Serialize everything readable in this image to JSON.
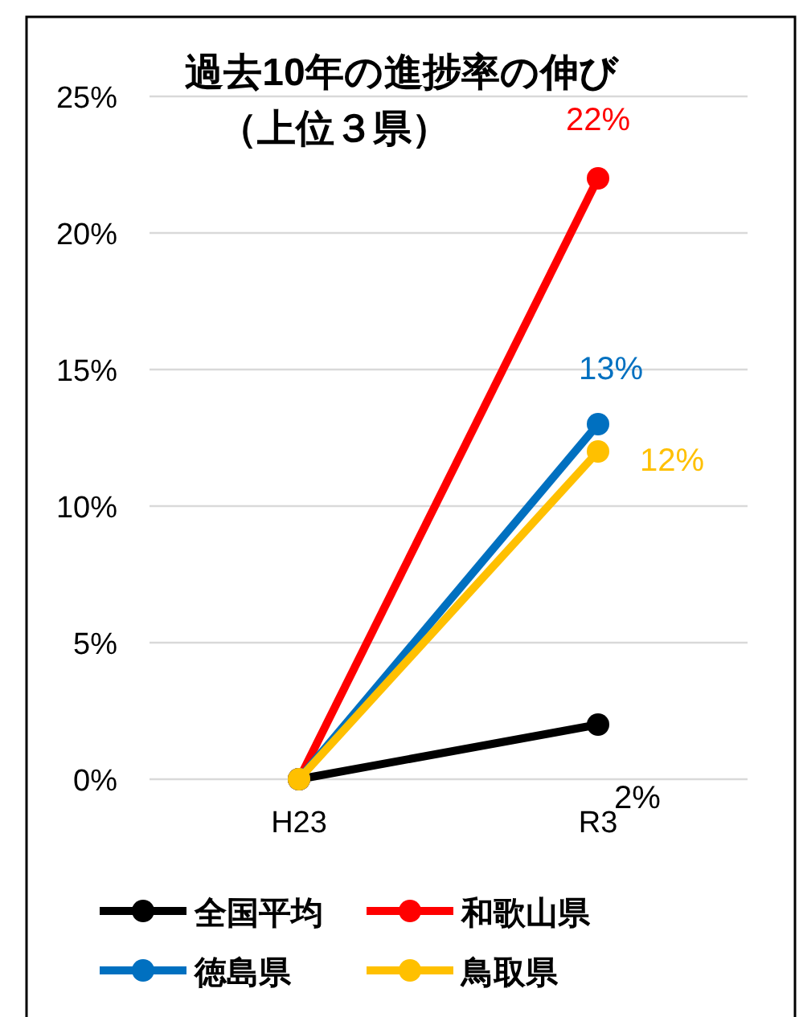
{
  "chart_data": {
    "type": "line",
    "title": "過去10年の進捗率の伸び",
    "subtitle": "（上位３県）",
    "categories": [
      "H23",
      "R3"
    ],
    "series": [
      {
        "name": "全国平均",
        "color": "#000000",
        "values": [
          0,
          2
        ],
        "value_labels": [
          null,
          "2%"
        ]
      },
      {
        "name": "和歌山県",
        "color": "#ff0000",
        "values": [
          0,
          22
        ],
        "value_labels": [
          null,
          "22%"
        ]
      },
      {
        "name": "徳島県",
        "color": "#0070c0",
        "values": [
          0,
          13
        ],
        "value_labels": [
          null,
          "13%"
        ]
      },
      {
        "name": "鳥取県",
        "color": "#ffc000",
        "values": [
          0,
          12
        ],
        "value_labels": [
          null,
          "12%"
        ]
      }
    ],
    "ylim": [
      0,
      25
    ],
    "yticks": [
      {
        "value": 0,
        "label": "0%"
      },
      {
        "value": 5,
        "label": "5%"
      },
      {
        "value": 10,
        "label": "10%"
      },
      {
        "value": 15,
        "label": "15%"
      },
      {
        "value": 20,
        "label": "20%"
      },
      {
        "value": 25,
        "label": "25%"
      }
    ],
    "grid": "y",
    "legend": "bottom",
    "marker": "circle",
    "line_style": "solid"
  }
}
